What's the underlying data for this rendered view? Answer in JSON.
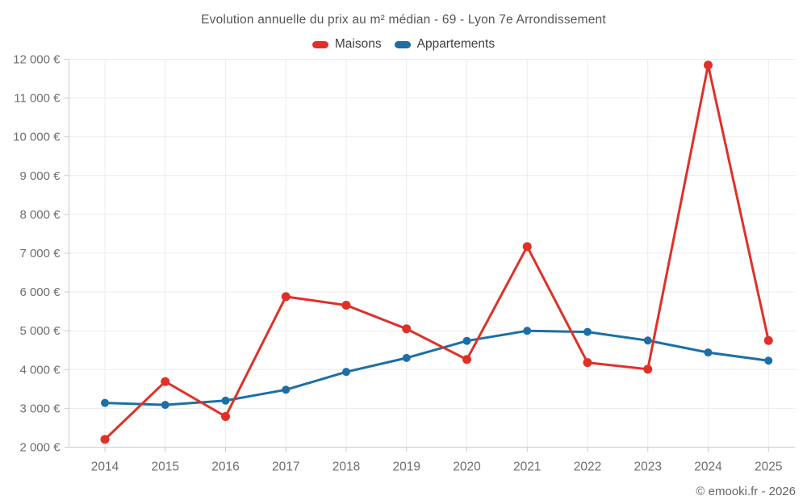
{
  "title": "Evolution annuelle du prix au m² médian - 69 - Lyon 7e Arrondissement",
  "footer": {
    "copyright": "© emooki.fr - 2026"
  },
  "chart_data": {
    "type": "line",
    "title": "Evolution annuelle du prix au m² médian - 69 - Lyon 7e Arrondissement",
    "categories": [
      "2014",
      "2015",
      "2016",
      "2017",
      "2018",
      "2019",
      "2020",
      "2021",
      "2022",
      "2023",
      "2024",
      "2025"
    ],
    "series": [
      {
        "name": "Maisons",
        "color": "#e03028",
        "values": [
          2200,
          3690,
          2790,
          5880,
          5660,
          5050,
          4260,
          7170,
          4180,
          4010,
          11850,
          4750
        ]
      },
      {
        "name": "Appartements",
        "color": "#1c6fa6",
        "values": [
          3140,
          3090,
          3200,
          3480,
          3940,
          4300,
          4740,
          5000,
          4970,
          4750,
          4440,
          4230
        ]
      }
    ],
    "ylim": [
      2000,
      12000
    ],
    "ytick_step": 1000,
    "ytick_labels": [
      "2 000 €",
      "3 000 €",
      "4 000 €",
      "5 000 €",
      "6 000 €",
      "7 000 €",
      "8 000 €",
      "9 000 €",
      "10 000 €",
      "11 000 €",
      "12 000 €"
    ],
    "xlabel": "",
    "ylabel": "",
    "grid": true,
    "legend_position": "top-center"
  }
}
